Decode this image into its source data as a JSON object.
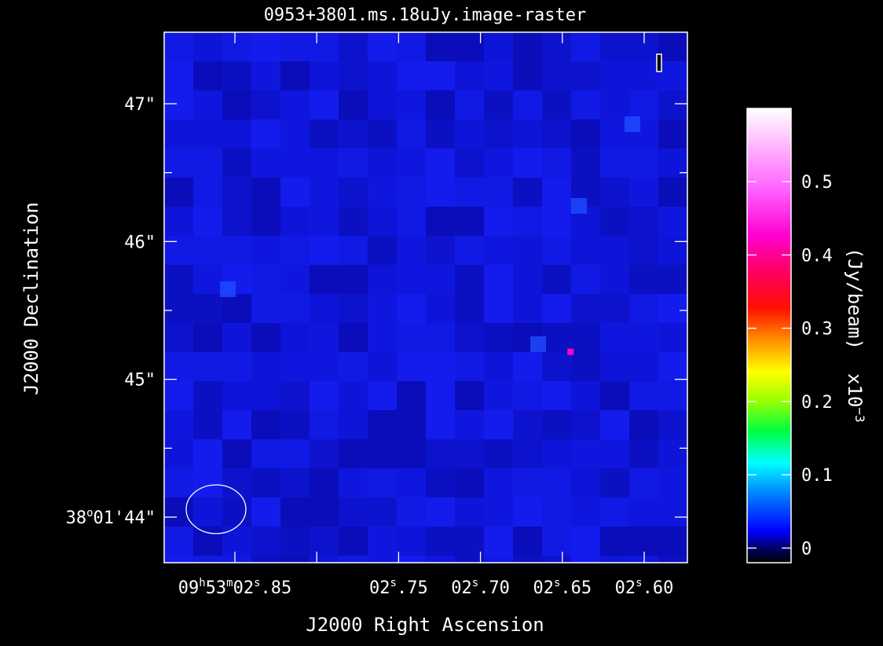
{
  "chart_data": {
    "type": "heatmap",
    "title": "0953+3801.ms.18uJy.image-raster",
    "xlabel": "J2000 Right Ascension",
    "ylabel": "J2000 Declination",
    "x_range": [
      "09h53m02.876s",
      "02.567s"
    ],
    "y_range": [
      "38°01'43.7\"",
      "38°01'47.5\""
    ],
    "x_ticks": [
      {
        "label": "09h53m02s.85",
        "value": 2.85
      },
      {
        "label": "02s.75",
        "value": 2.75
      },
      {
        "label": "02s.70",
        "value": 2.7
      },
      {
        "label": "02s.65",
        "value": 2.65
      },
      {
        "label": "02s.60",
        "value": 2.6
      }
    ],
    "x_ticks_unlabeled": [
      2.8
    ],
    "y_ticks": [
      {
        "label": "38°01'44\"",
        "value": 44
      },
      {
        "label": "45\"",
        "value": 45
      },
      {
        "label": "46\"",
        "value": 46
      },
      {
        "label": "47\"",
        "value": 47
      }
    ],
    "y_minor_ticks": [
      44.5,
      45.5,
      46.5
    ],
    "colorbar": {
      "label": "(Jy/beam)",
      "multiplier": "x10^-3",
      "range": [
        -0.02,
        0.6
      ],
      "ticks": [
        {
          "label": "0",
          "value": 0
        },
        {
          "label": "0.1",
          "value": 0.1
        },
        {
          "label": "0.2",
          "value": 0.2
        },
        {
          "label": "0.3",
          "value": 0.3
        },
        {
          "label": "0.4",
          "value": 0.4
        },
        {
          "label": "0.5",
          "value": 0.5
        }
      ],
      "colormap": "rainbow (black-blue-cyan-green-yellow-orange-red-magenta-white)"
    },
    "image_summary": {
      "background_level": "noise near 0 (blue)",
      "peak_pixel": {
        "ra": 2.645,
        "dec": 45.2,
        "level_approx": 0.45,
        "color": "#ff00c8"
      }
    },
    "beam": {
      "present": true,
      "shape": "ellipse",
      "location": "bottom-left"
    },
    "marker": {
      "present": true,
      "location": "top-right"
    },
    "grid": false
  }
}
